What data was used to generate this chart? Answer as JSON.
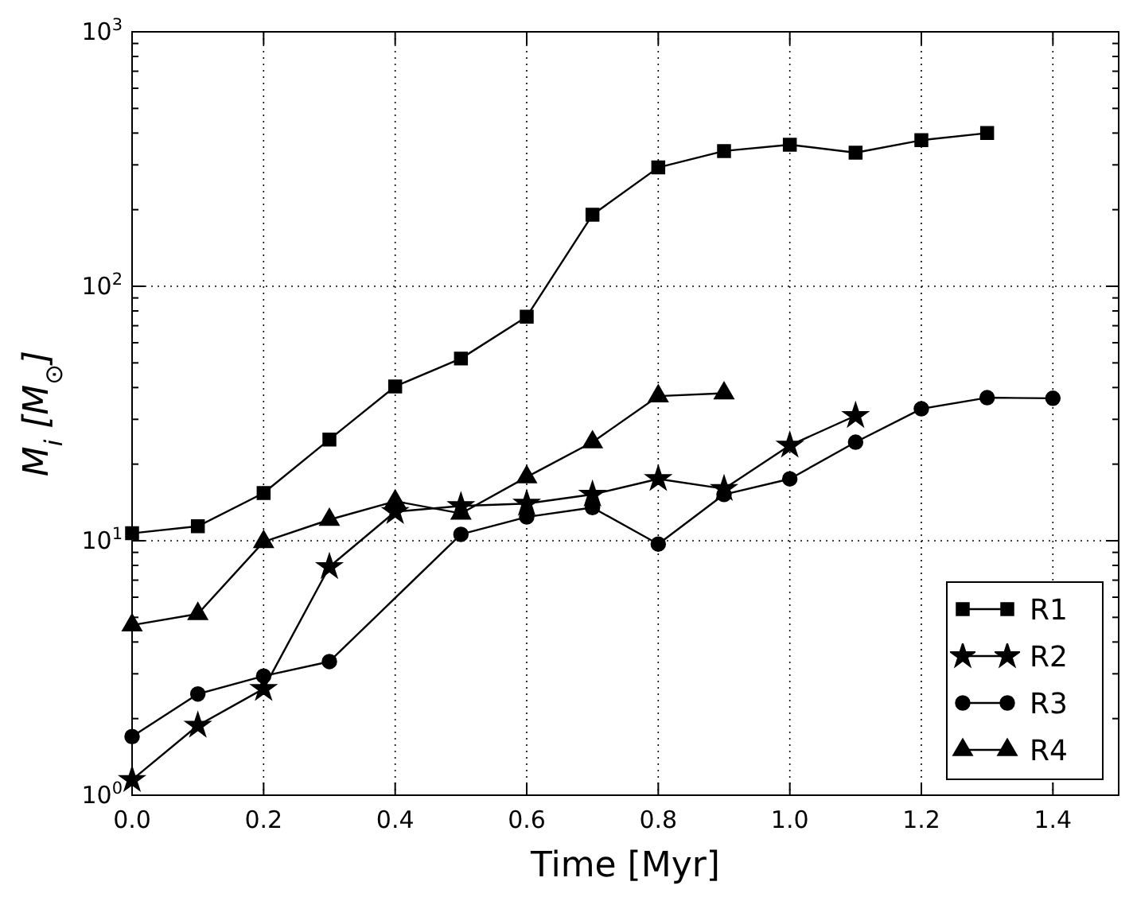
{
  "chart_data": {
    "type": "line",
    "xlabel": "Time [Myr]",
    "ylabel": "M$_{i}$ [M$_{⊙}$]",
    "log": "y",
    "grid": true,
    "legend": "bottom right",
    "line_style": "solid",
    "xlim": [
      0,
      1.5
    ],
    "xticks": [
      {
        "value": 0,
        "label": "0.0"
      },
      {
        "value": 0.2,
        "label": "0.2"
      },
      {
        "value": 0.4,
        "label": "0.4"
      },
      {
        "value": 0.6,
        "label": "0.6"
      },
      {
        "value": 0.8,
        "label": "0.8"
      },
      {
        "value": 1,
        "label": "1.0"
      },
      {
        "value": 1.2,
        "label": "1.2"
      },
      {
        "value": 1.4,
        "label": "1.4"
      }
    ],
    "ylim": [
      1,
      1000
    ],
    "yticks": [
      {
        "value": 1,
        "label": "10$^{0}$"
      },
      {
        "value": 2,
        "label": null
      },
      {
        "value": 3,
        "label": null
      },
      {
        "value": 4,
        "label": null
      },
      {
        "value": 5,
        "label": null
      },
      {
        "value": 6,
        "label": null
      },
      {
        "value": 7,
        "label": null
      },
      {
        "value": 8,
        "label": null
      },
      {
        "value": 9,
        "label": null
      },
      {
        "value": 10,
        "label": "10$^{1}$"
      },
      {
        "value": 20,
        "label": null
      },
      {
        "value": 30,
        "label": null
      },
      {
        "value": 40,
        "label": null
      },
      {
        "value": 50,
        "label": null
      },
      {
        "value": 60,
        "label": null
      },
      {
        "value": 70,
        "label": null
      },
      {
        "value": 80,
        "label": null
      },
      {
        "value": 90,
        "label": null
      },
      {
        "value": 100,
        "label": "10$^{2}$"
      },
      {
        "value": 200,
        "label": null
      },
      {
        "value": 300,
        "label": null
      },
      {
        "value": 400,
        "label": null
      },
      {
        "value": 500,
        "label": null
      },
      {
        "value": 600,
        "label": null
      },
      {
        "value": 700,
        "label": null
      },
      {
        "value": 800,
        "label": null
      },
      {
        "value": 900,
        "label": null
      },
      {
        "value": 1000,
        "label": "10$^{3}$"
      }
    ],
    "series": [
      {
        "name": "R1",
        "color": "#000000",
        "marker": "square",
        "x": [
          0,
          0.1,
          0.2,
          0.3,
          0.4,
          0.5,
          0.6,
          0.7,
          0.8,
          0.9,
          1.0,
          1.1,
          1.2,
          1.3
        ],
        "values": [
          10.7,
          11.4,
          15.4,
          25,
          40.4,
          52,
          76,
          191,
          293,
          340,
          360,
          335,
          375,
          400
        ]
      },
      {
        "name": "R2",
        "color": "#000000",
        "marker": "star",
        "x": [
          0,
          0.1,
          0.2,
          0.3,
          0.4,
          0.5,
          0.6,
          0.7,
          0.8,
          0.9,
          1.0,
          1.1
        ],
        "values": [
          1.15,
          1.88,
          2.62,
          7.9,
          13,
          13.7,
          14,
          15.2,
          17.5,
          16,
          23.7,
          31
        ]
      },
      {
        "name": "R3",
        "color": "#000000",
        "marker": "circle",
        "x": [
          0,
          0.1,
          0.2,
          0.3,
          0.5,
          0.6,
          0.7,
          0.8,
          0.9,
          1.0,
          1.1,
          1.2,
          1.3,
          1.4
        ],
        "values": [
          1.7,
          2.5,
          2.94,
          3.35,
          10.6,
          12.4,
          13.5,
          9.7,
          15.2,
          17.5,
          24.4,
          33,
          36.5,
          36.3
        ]
      },
      {
        "name": "R4",
        "color": "#000000",
        "marker": "triangle",
        "x": [
          0,
          0.1,
          0.2,
          0.3,
          0.4,
          0.5,
          0.6,
          0.7,
          0.8,
          0.9
        ],
        "values": [
          4.66,
          5.16,
          9.9,
          12.1,
          14.3,
          12.8,
          17.8,
          24.4,
          37,
          38
        ]
      }
    ]
  }
}
